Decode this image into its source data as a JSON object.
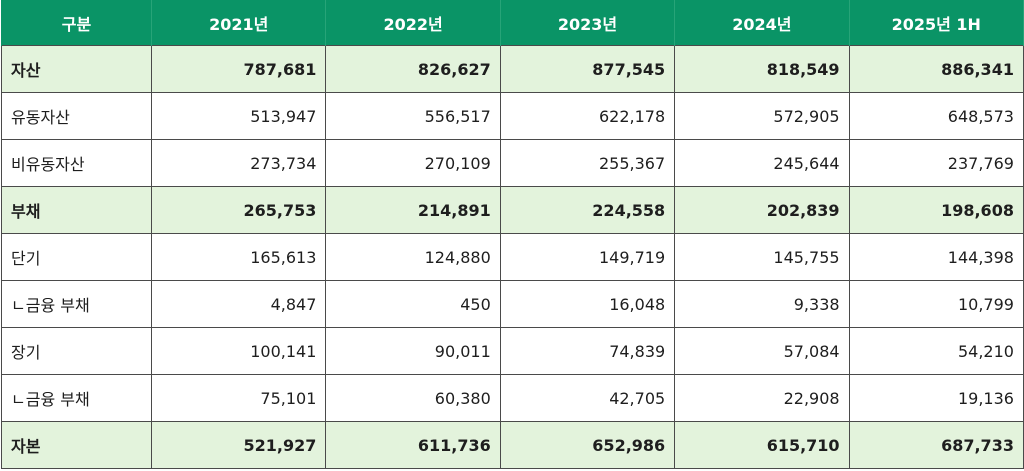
{
  "table": {
    "headers": [
      "구분",
      "2021년",
      "2022년",
      "2023년",
      "2024년",
      "2025년 1H"
    ],
    "rows": [
      {
        "label": "자산",
        "bold": true,
        "values": [
          "787,681",
          "826,627",
          "877,545",
          "818,549",
          "886,341"
        ]
      },
      {
        "label": "유동자산",
        "bold": false,
        "values": [
          "513,947",
          "556,517",
          "622,178",
          "572,905",
          "648,573"
        ]
      },
      {
        "label": "비유동자산",
        "bold": false,
        "values": [
          "273,734",
          "270,109",
          "255,367",
          "245,644",
          "237,769"
        ]
      },
      {
        "label": "부채",
        "bold": true,
        "values": [
          "265,753",
          "214,891",
          "224,558",
          "202,839",
          "198,608"
        ]
      },
      {
        "label": "단기",
        "bold": false,
        "values": [
          "165,613",
          "124,880",
          "149,719",
          "145,755",
          "144,398"
        ]
      },
      {
        "label": "ㄴ금융 부채",
        "bold": false,
        "values": [
          "4,847",
          "450",
          "16,048",
          "9,338",
          "10,799"
        ]
      },
      {
        "label": "장기",
        "bold": false,
        "values": [
          "100,141",
          "90,011",
          "74,839",
          "57,084",
          "54,210"
        ]
      },
      {
        "label": "ㄴ금융 부채",
        "bold": false,
        "values": [
          "75,101",
          "60,380",
          "42,705",
          "22,908",
          "19,136"
        ]
      },
      {
        "label": "자본",
        "bold": true,
        "values": [
          "521,927",
          "611,736",
          "652,986",
          "615,710",
          "687,733"
        ]
      }
    ]
  }
}
